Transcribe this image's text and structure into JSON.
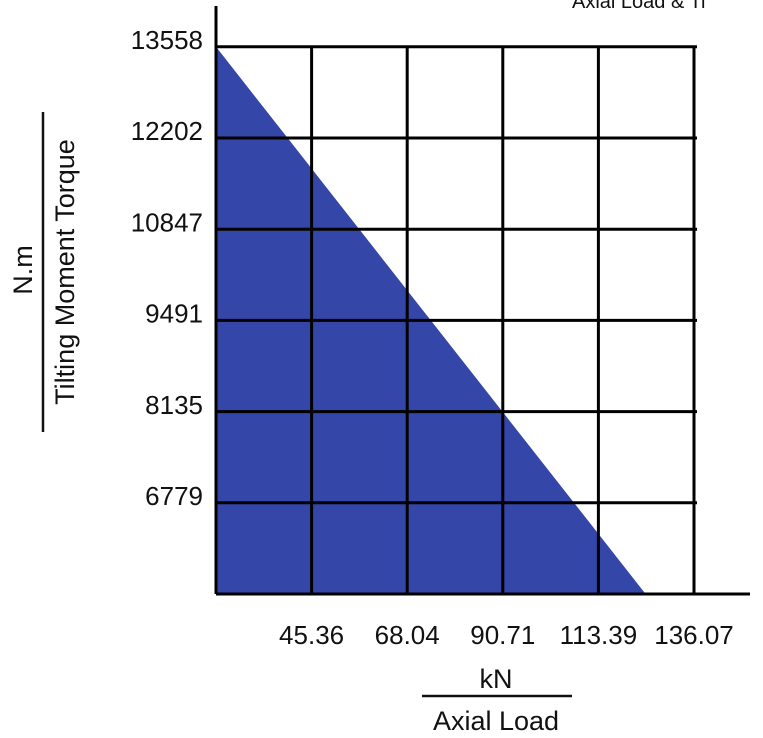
{
  "chart_data": {
    "type": "area",
    "title": "Axial Load & Ti",
    "xlabel_unit": "kN",
    "xlabel": "Axial Load",
    "ylabel_unit": "N.m",
    "ylabel": "Tilting Moment Torque",
    "x_ticks": [
      "45.36",
      "68.04",
      "90.71",
      "113.39",
      "136.07"
    ],
    "y_ticks": [
      "13558",
      "12202",
      "10847",
      "9491",
      "8135",
      "6779"
    ],
    "xlim": [
      22.68,
      136.07
    ],
    "ylim": [
      5423,
      13558
    ],
    "series": [
      {
        "x": [
          22.68,
          124.6
        ],
        "y": [
          13558,
          5423
        ]
      }
    ],
    "grid": true,
    "colors": {
      "fill": "#3446a8",
      "grid": "#000000",
      "background": "#ffffff"
    }
  }
}
